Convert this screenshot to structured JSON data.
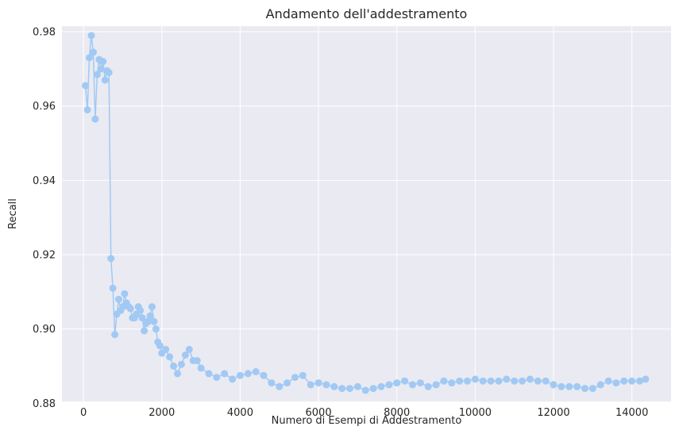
{
  "chart_data": {
    "type": "line",
    "title": "Andamento dell'addestramento",
    "xlabel": "Numero di Esempi di Addestramento",
    "ylabel": "Recall",
    "xlim": [
      -550,
      15000
    ],
    "ylim": [
      0.8805,
      0.9815
    ],
    "xticks": [
      0,
      2000,
      4000,
      6000,
      8000,
      10000,
      12000,
      14000
    ],
    "xtick_labels": [
      "0",
      "2000",
      "4000",
      "6000",
      "8000",
      "10000",
      "12000",
      "14000"
    ],
    "yticks": [
      0.88,
      0.9,
      0.92,
      0.94,
      0.96,
      0.98
    ],
    "ytick_labels": [
      "0.88",
      "0.90",
      "0.92",
      "0.94",
      "0.96",
      "0.98"
    ],
    "grid": true,
    "background_color": "#eaeaf2",
    "series_color": "#a1c9f4",
    "series": [
      {
        "x": [
          50,
          100,
          150,
          200,
          250,
          300,
          350,
          400,
          450,
          500,
          550,
          600,
          650,
          700,
          750,
          800,
          850,
          900,
          950,
          1000,
          1050,
          1100,
          1150,
          1200,
          1250,
          1300,
          1350,
          1400,
          1450,
          1500,
          1550,
          1600,
          1650,
          1700,
          1750,
          1800,
          1850,
          1900,
          1950,
          2000,
          2100,
          2200,
          2300,
          2400,
          2500,
          2600,
          2700,
          2800,
          2900,
          3000,
          3200,
          3400,
          3600,
          3800,
          4000,
          4200,
          4400,
          4600,
          4800,
          5000,
          5200,
          5400,
          5600,
          5800,
          6000,
          6200,
          6400,
          6600,
          6800,
          7000,
          7200,
          7400,
          7600,
          7800,
          8000,
          8200,
          8400,
          8600,
          8800,
          9000,
          9200,
          9400,
          9600,
          9800,
          10000,
          10200,
          10400,
          10600,
          10800,
          11000,
          11200,
          11400,
          11600,
          11800,
          12000,
          12200,
          12400,
          12600,
          12800,
          13000,
          13200,
          13400,
          13600,
          13800,
          14000,
          14200,
          14350
        ],
        "y": [
          0.9655,
          0.959,
          0.973,
          0.979,
          0.9745,
          0.9565,
          0.9685,
          0.9725,
          0.97,
          0.972,
          0.967,
          0.9695,
          0.969,
          0.919,
          0.911,
          0.8985,
          0.904,
          0.908,
          0.905,
          0.906,
          0.9095,
          0.907,
          0.906,
          0.9055,
          0.903,
          0.903,
          0.904,
          0.906,
          0.905,
          0.903,
          0.8995,
          0.9015,
          0.902,
          0.9035,
          0.906,
          0.902,
          0.9,
          0.8965,
          0.8955,
          0.8935,
          0.8945,
          0.8925,
          0.89,
          0.888,
          0.8905,
          0.893,
          0.8945,
          0.8915,
          0.8915,
          0.8895,
          0.888,
          0.887,
          0.888,
          0.8865,
          0.8875,
          0.888,
          0.8885,
          0.8875,
          0.8855,
          0.8845,
          0.8855,
          0.887,
          0.8875,
          0.885,
          0.8855,
          0.885,
          0.8845,
          0.884,
          0.884,
          0.8845,
          0.8835,
          0.884,
          0.8845,
          0.885,
          0.8855,
          0.886,
          0.885,
          0.8855,
          0.8845,
          0.885,
          0.886,
          0.8855,
          0.886,
          0.886,
          0.8865,
          0.886,
          0.886,
          0.886,
          0.8865,
          0.886,
          0.886,
          0.8865,
          0.886,
          0.886,
          0.885,
          0.8845,
          0.8845,
          0.8845,
          0.884,
          0.884,
          0.885,
          0.886,
          0.8855,
          0.886,
          0.886,
          0.886,
          0.8865
        ]
      }
    ]
  }
}
